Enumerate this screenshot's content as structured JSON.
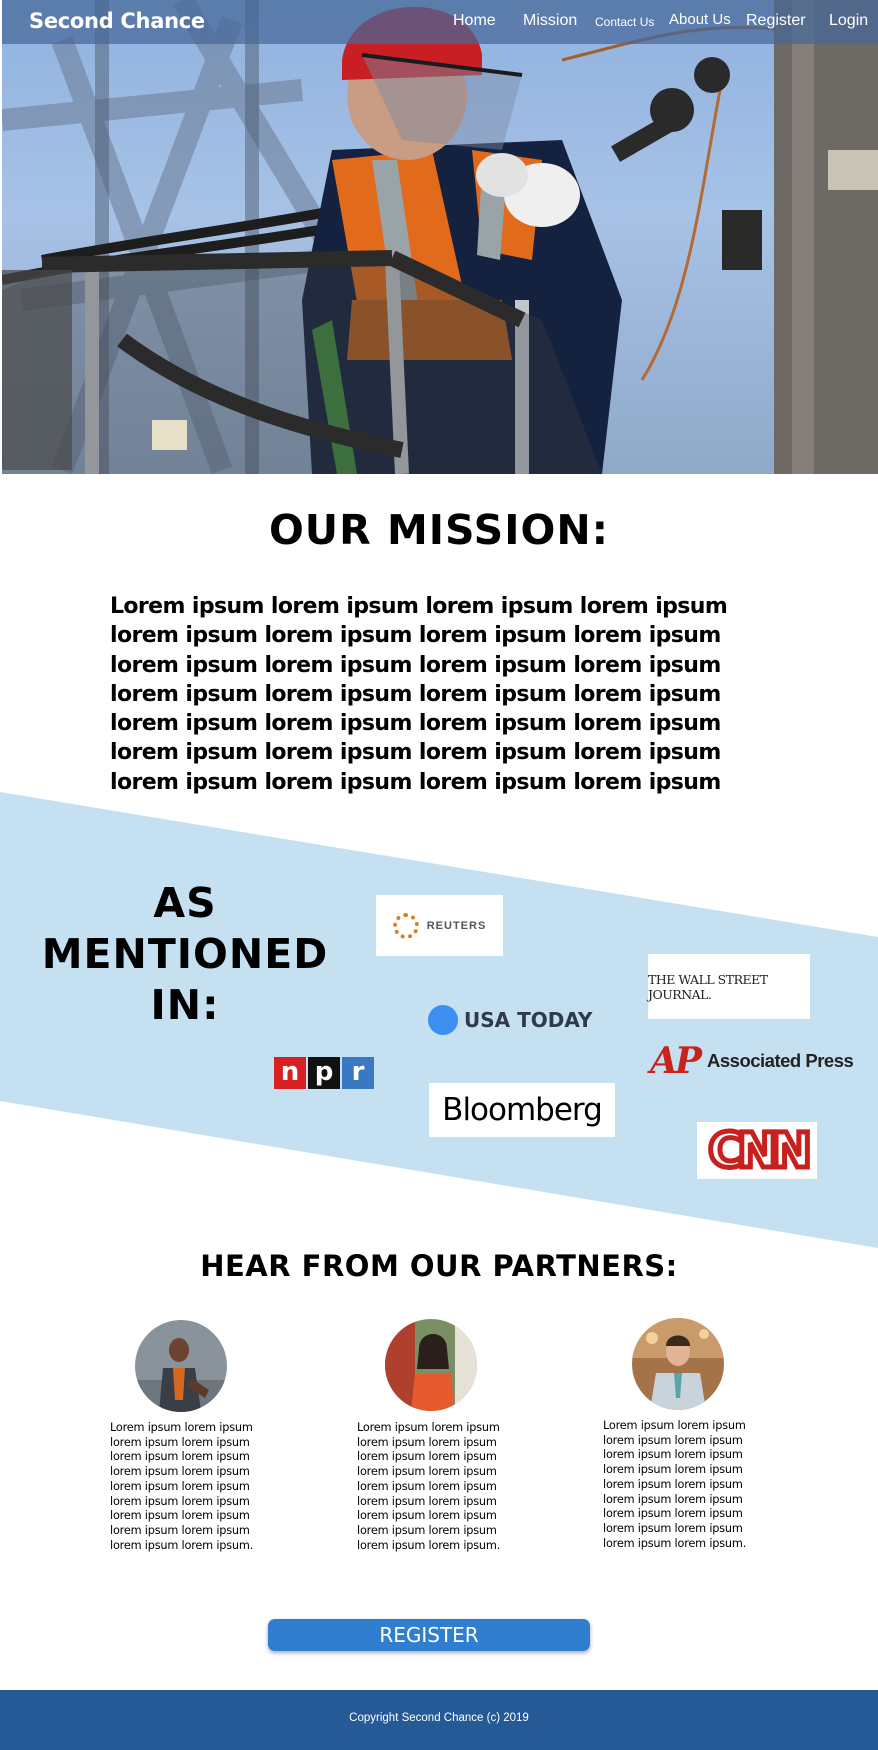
{
  "brand": "Second Chance",
  "nav": {
    "home": "Home",
    "mission": "Mission",
    "contact": "Contact Us",
    "about": "About Us",
    "register": "Register",
    "login": "Login"
  },
  "hero": {
    "image": "utility worker on electrical pole"
  },
  "mission": {
    "title": "OUR MISSION:",
    "body": "Lorem ipsum lorem ipsum lorem ipsum lorem ipsum lorem ipsum lorem ipsum lorem ipsum lorem ipsum lorem ipsum lorem ipsum  lorem ipsum lorem ipsum lorem ipsum lorem ipsum lorem ipsum lorem ipsum lorem ipsum lorem ipsum lorem ipsum  lorem ipsum lorem ipsum lorem ipsum lorem ipsum lorem ipsum lorem ipsum lorem ipsum lorem ipsum lorem ipsum"
  },
  "mentioned": {
    "title": "AS MENTIONED IN:",
    "logos": {
      "reuters": "REUTERS",
      "wsj": "THE WALL STREET JOURNAL.",
      "usatoday": "USA TODAY",
      "ap_mark": "AP",
      "ap_text": "Associated Press",
      "npr": [
        "n",
        "p",
        "r"
      ],
      "bloomberg": "Bloomberg",
      "cnn": "CNN"
    }
  },
  "partners": {
    "title": "HEAR FROM OUR PARTNERS:",
    "items": [
      {
        "text": "Lorem ipsum lorem ipsum lorem ipsum lorem ipsum lorem ipsum lorem ipsum lorem ipsum lorem ipsum lorem ipsum lorem ipsum lorem ipsum lorem ipsum lorem ipsum lorem ipsum lorem ipsum lorem ipsum lorem ipsum lorem ipsum."
      },
      {
        "text": "Lorem ipsum lorem ipsum lorem ipsum lorem ipsum lorem ipsum lorem ipsum lorem ipsum lorem ipsum lorem ipsum lorem ipsum lorem ipsum lorem ipsum lorem ipsum lorem ipsum lorem ipsum lorem ipsum lorem ipsum lorem ipsum."
      },
      {
        "text": "Lorem ipsum lorem ipsum lorem ipsum lorem ipsum lorem ipsum lorem ipsum lorem ipsum lorem ipsum lorem ipsum lorem ipsum lorem ipsum lorem ipsum lorem ipsum lorem ipsum lorem ipsum lorem ipsum lorem ipsum lorem ipsum."
      }
    ]
  },
  "register_button": "REGISTER",
  "footer": "Copyright Second Chance (c) 2019",
  "colors": {
    "nav_bg": "#466898",
    "band": "#c5e0f1",
    "button": "#2f7ed0",
    "footer": "#265a97"
  }
}
